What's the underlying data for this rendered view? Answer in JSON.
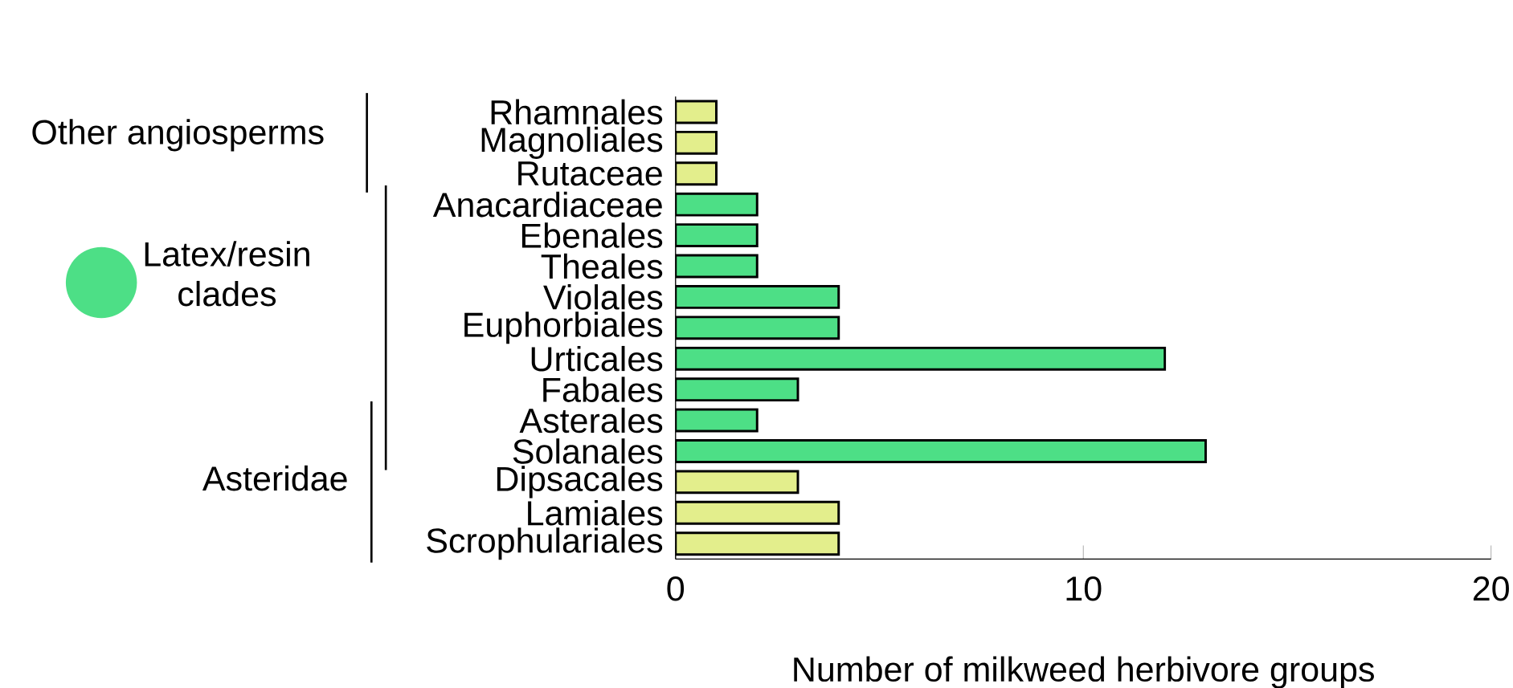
{
  "chart_data": {
    "type": "bar",
    "orientation": "horizontal",
    "categories": [
      "Rhamnales",
      "Magnoliales",
      "Rutaceae",
      "Anacardiaceae",
      "Ebenales",
      "Theales",
      "Violales",
      "Euphorbiales",
      "Urticales",
      "Fabales",
      "Asterales",
      "Solanales",
      "Dipsacales",
      "Lamiales",
      "Scrophulariales"
    ],
    "values": [
      1,
      1,
      1,
      2,
      2,
      2,
      4,
      4,
      12,
      3,
      2,
      13,
      3,
      4,
      4
    ],
    "colors": [
      "#e3ee8c",
      "#e3ee8c",
      "#e3ee8c",
      "#4ddf86",
      "#4ddf86",
      "#4ddf86",
      "#4ddf86",
      "#4ddf86",
      "#4ddf86",
      "#4ddf86",
      "#4ddf86",
      "#4ddf86",
      "#e3ee8c",
      "#e3ee8c",
      "#e3ee8c"
    ],
    "xlim": [
      0,
      20
    ],
    "xticks": [
      0,
      10,
      20
    ],
    "xlabel": "Number of milkweed herbivore groups",
    "annotations": [
      "Other angiosperms",
      "Latex/resin clades",
      "Asteridae"
    ]
  }
}
